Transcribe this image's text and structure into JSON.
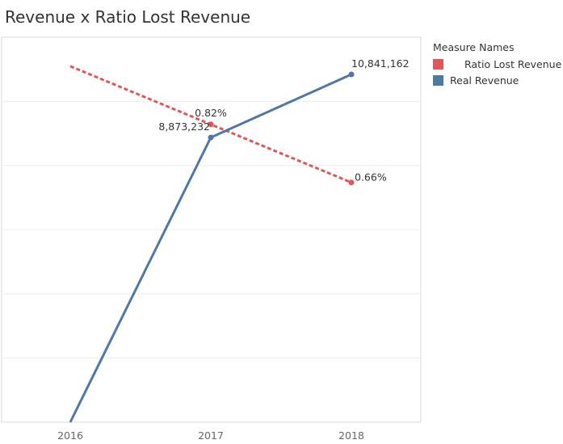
{
  "chart_data": {
    "type": "line",
    "title": "Revenue x Ratio Lost Revenue",
    "categories": [
      "2016",
      "2017",
      "2018"
    ],
    "legend_title": "Measure Names",
    "legend_position": "right",
    "grid": true,
    "series": [
      {
        "name": "Ratio Lost Revenue",
        "color": "#e15759",
        "style": "dashed",
        "values": [
          0.0098,
          0.0082,
          0.0066
        ],
        "labels": [
          "",
          "0.82%",
          "0.66%"
        ],
        "ylim": [
          0,
          0.0106
        ]
      },
      {
        "name": "Real Revenue",
        "color": "#4e79a7",
        "style": "solid",
        "values": [
          0,
          8873232,
          10841162
        ],
        "labels": [
          "",
          "8,873,232",
          "10,841,162"
        ],
        "ylim": [
          0,
          12000000
        ]
      }
    ],
    "legend_order": [
      "Ratio Lost Revenue",
      "Real Revenue"
    ]
  }
}
